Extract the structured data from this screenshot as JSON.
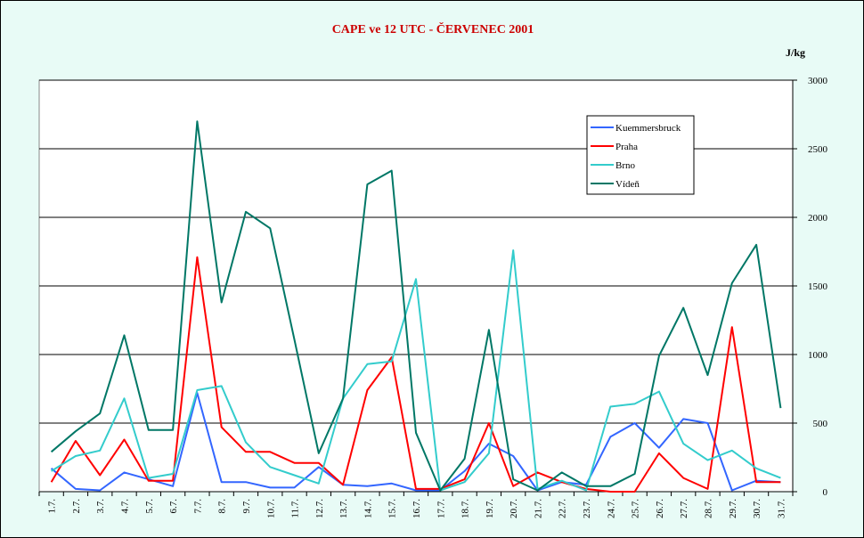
{
  "chart_data": {
    "type": "line",
    "title": "CAPE ve 12 UTC - ČERVENEC 2001",
    "ylabel": "J/kg",
    "xlabel": "",
    "ylim": [
      0,
      3000
    ],
    "yticks": [
      0,
      500,
      1000,
      1500,
      2000,
      2500,
      3000
    ],
    "y_axis_side": "right",
    "grid": true,
    "legend_position": "top-right",
    "categories": [
      "1.7.",
      "2.7.",
      "3.7.",
      "4.7.",
      "5.7.",
      "6.7.",
      "7.7.",
      "8.7.",
      "9.7.",
      "10.7.",
      "11.7.",
      "12.7.",
      "13.7.",
      "14.7.",
      "15.7.",
      "16.7.",
      "17.7.",
      "18.7.",
      "19.7.",
      "20.7.",
      "21.7.",
      "22.7.",
      "23.7.",
      "24.7.",
      "25.7.",
      "26.7.",
      "27.7.",
      "28.7.",
      "29.7.",
      "30.7.",
      "31.7."
    ],
    "series": [
      {
        "name": "Kuemmersbruck",
        "color": "#3366ff",
        "values": [
          170,
          20,
          10,
          140,
          90,
          40,
          720,
          70,
          70,
          30,
          30,
          180,
          50,
          40,
          60,
          10,
          10,
          150,
          350,
          260,
          10,
          70,
          50,
          400,
          500,
          320,
          530,
          500,
          10,
          80,
          70
        ]
      },
      {
        "name": "Praha",
        "color": "#ff0000",
        "values": [
          70,
          370,
          120,
          380,
          80,
          80,
          1710,
          470,
          290,
          290,
          210,
          210,
          50,
          740,
          980,
          20,
          20,
          90,
          500,
          40,
          140,
          70,
          20,
          0,
          0,
          280,
          100,
          20,
          1200,
          70,
          70
        ]
      },
      {
        "name": "Brno",
        "color": "#33cccc",
        "values": [
          150,
          260,
          300,
          680,
          100,
          130,
          740,
          770,
          360,
          180,
          120,
          60,
          680,
          930,
          950,
          1550,
          10,
          70,
          280,
          1760,
          20,
          80,
          10,
          620,
          640,
          730,
          350,
          230,
          300,
          170,
          100
        ]
      },
      {
        "name": "Vídeň",
        "color": "#007766",
        "values": [
          290,
          440,
          570,
          1140,
          450,
          450,
          2700,
          1380,
          2040,
          1920,
          1110,
          280,
          680,
          2240,
          2340,
          430,
          10,
          240,
          1180,
          90,
          10,
          140,
          40,
          40,
          130,
          990,
          1340,
          850,
          1520,
          1800,
          610
        ]
      }
    ]
  }
}
